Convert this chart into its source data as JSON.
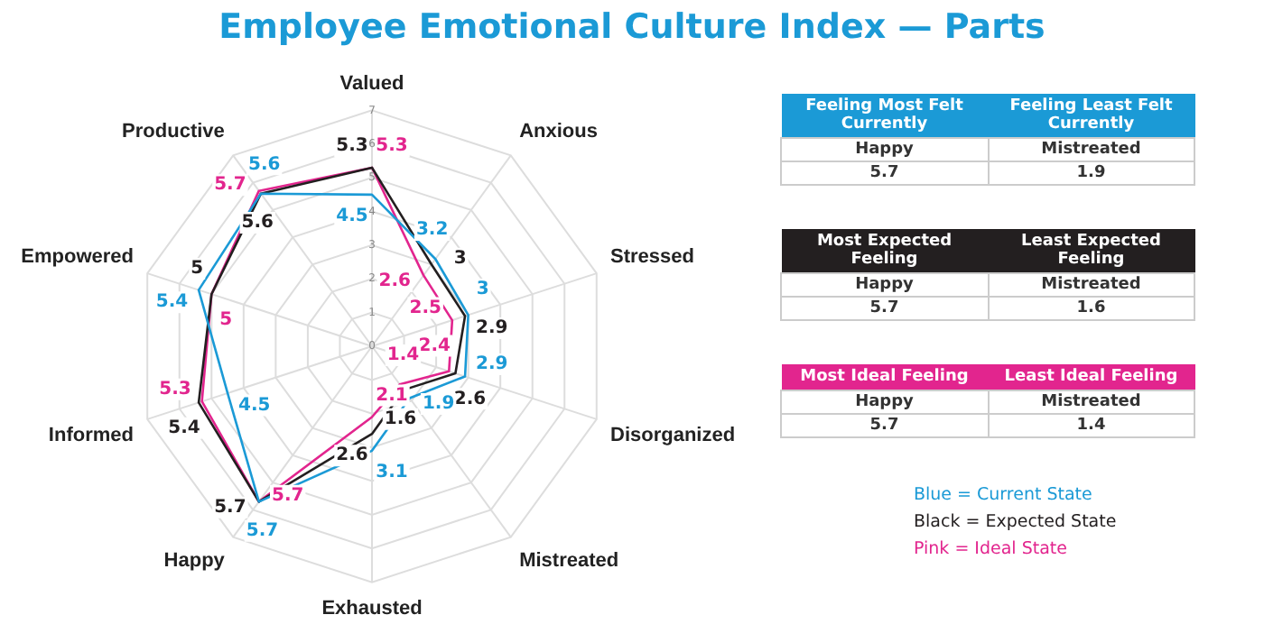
{
  "chart_data": {
    "type": "radar",
    "title": "Employee Emotional Culture Index — Parts",
    "categories": [
      "Valued",
      "Anxious",
      "Stressed",
      "Disorganized",
      "Mistreated",
      "Exhausted",
      "Happy",
      "Informed",
      "Empowered",
      "Productive"
    ],
    "series": [
      {
        "name": "Blue = Current State",
        "color": "#1b9ad6",
        "values": [
          4.5,
          3.2,
          3,
          2.9,
          1.9,
          3.1,
          5.7,
          4.5,
          5.4,
          5.6
        ]
      },
      {
        "name": "Black = Expected State",
        "color": "#231f20",
        "values": [
          5.3,
          3,
          2.9,
          2.6,
          1.6,
          2.6,
          5.7,
          5.4,
          5,
          5.6
        ]
      },
      {
        "name": "Pink = Ideal State",
        "color": "#e2258e",
        "values": [
          5.3,
          2.6,
          2.5,
          2.4,
          1.4,
          2.1,
          5.7,
          5.3,
          5,
          5.7
        ]
      }
    ],
    "ylim": [
      0,
      7
    ],
    "yticks": [
      0,
      1,
      2,
      3,
      4,
      5,
      6,
      7
    ],
    "grid": true,
    "data_labels": true,
    "marker": "none",
    "line_style": "solid",
    "legend": "right",
    "annotations": [
      "Feeling Most Felt Currently",
      "Feeling Least Felt Currently",
      "Happy",
      "Mistreated",
      "5.7",
      "1.9",
      "Most Expected Feeling",
      "Least Expected Feeling",
      "Happy",
      "Mistreated",
      "5.7",
      "1.6",
      "Most Ideal Feeling",
      "Least Ideal Feeling",
      "Happy",
      "Mistreated",
      "5.7",
      "1.4"
    ]
  }
}
